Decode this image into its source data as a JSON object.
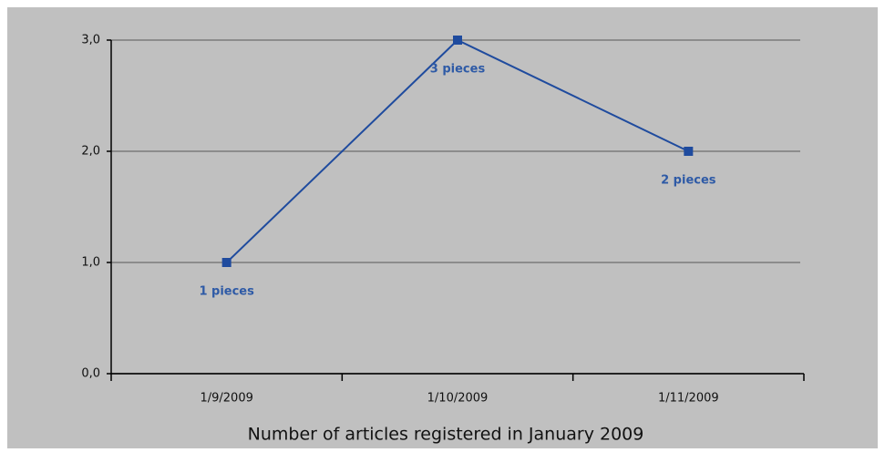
{
  "chart_data": {
    "type": "line",
    "x_label": "Number of articles registered in January 2009",
    "categories": [
      "1/9/2009",
      "1/10/2009",
      "1/11/2009"
    ],
    "series": [
      {
        "color": "#1f4b9e",
        "values": [
          1,
          3,
          2
        ],
        "value_labels": [
          "1 pieces",
          "3 pieces",
          "2 pieces"
        ]
      }
    ],
    "ylim": [
      0,
      3
    ],
    "yticks": [
      {
        "value": 0,
        "label": "0,0"
      },
      {
        "value": 1,
        "label": "1,0"
      },
      {
        "value": 2,
        "label": "2,0"
      },
      {
        "value": 3,
        "label": "3,0"
      }
    ],
    "grid": true
  }
}
